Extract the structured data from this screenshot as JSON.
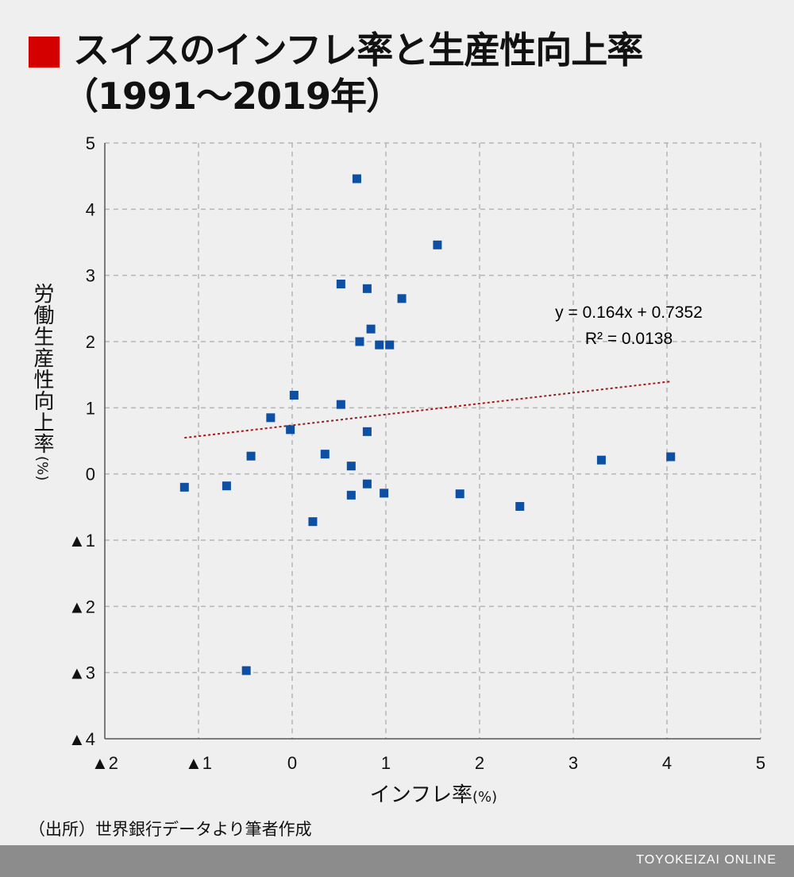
{
  "title": {
    "line1": "スイスのインフレ率と生産性向上率",
    "line2": "（1991〜2019年）",
    "marker_color": "#d40000"
  },
  "chart_data": {
    "type": "scatter",
    "title": "スイスのインフレ率と生産性向上率（1991〜2019年）",
    "xlabel": "インフレ率",
    "xlabel_unit": "(%)",
    "ylabel": "労働生産性向上率",
    "ylabel_unit": "(%)",
    "xlim": [
      -2,
      5
    ],
    "ylim": [
      -4,
      5
    ],
    "x_ticks": [
      -2,
      -1,
      0,
      1,
      2,
      3,
      4,
      5
    ],
    "x_tick_labels": [
      "▲2",
      "▲1",
      "0",
      "1",
      "2",
      "3",
      "4",
      "5"
    ],
    "y_ticks": [
      5,
      4,
      3,
      2,
      1,
      0,
      -1,
      -2,
      -3,
      -4
    ],
    "y_tick_labels": [
      "5",
      "4",
      "3",
      "2",
      "1",
      "0",
      "▲1",
      "▲2",
      "▲3",
      "▲4"
    ],
    "grid": true,
    "marker_color": "#0d4fa3",
    "trend_color": "#9c1c1c",
    "points": [
      [
        0.69,
        4.46
      ],
      [
        1.55,
        3.46
      ],
      [
        0.52,
        2.87
      ],
      [
        0.8,
        2.8
      ],
      [
        1.17,
        2.65
      ],
      [
        0.84,
        2.19
      ],
      [
        0.72,
        2.0
      ],
      [
        0.93,
        1.95
      ],
      [
        1.04,
        1.95
      ],
      [
        0.02,
        1.19
      ],
      [
        0.52,
        1.05
      ],
      [
        -0.23,
        0.85
      ],
      [
        -0.02,
        0.67
      ],
      [
        0.8,
        0.64
      ],
      [
        -0.44,
        0.27
      ],
      [
        0.35,
        0.3
      ],
      [
        0.63,
        0.12
      ],
      [
        3.3,
        0.21
      ],
      [
        4.04,
        0.26
      ],
      [
        -1.15,
        -0.2
      ],
      [
        -0.7,
        -0.18
      ],
      [
        0.8,
        -0.15
      ],
      [
        0.63,
        -0.32
      ],
      [
        0.98,
        -0.29
      ],
      [
        1.79,
        -0.3
      ],
      [
        2.43,
        -0.49
      ],
      [
        0.22,
        -0.72
      ],
      [
        -0.49,
        -2.97
      ]
    ],
    "trendline": {
      "slope": 0.164,
      "intercept": 0.7352,
      "x_range": [
        -1.15,
        4.04
      ],
      "equation": "y = 0.164x + 0.7352",
      "r2_label": "R² = 0.0138"
    }
  },
  "source": "（出所）世界銀行データより筆者作成",
  "footer": {
    "brand": "TOYOKEIZAI ONLINE"
  }
}
